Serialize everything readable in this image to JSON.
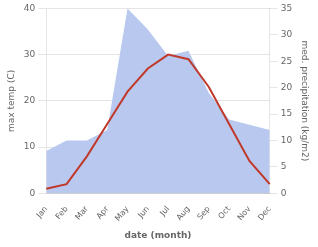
{
  "chart_data": {
    "type": "line",
    "xlabel": "date (month)",
    "ylabel": "max temp (C)",
    "y2label": "med. precipitation (kg/m2)",
    "categories": [
      "Jan",
      "Feb",
      "Mar",
      "Apr",
      "May",
      "Jun",
      "Jul",
      "Aug",
      "Sep",
      "Oct",
      "Nov",
      "Dec"
    ],
    "series": [
      {
        "type": "area",
        "color": "#b8c8ee",
        "axis": "y2",
        "values": [
          8,
          10,
          10,
          12,
          35,
          31,
          26,
          27,
          19,
          14,
          13,
          12
        ]
      },
      {
        "type": "line",
        "color": "#c0392b",
        "values": [
          1,
          2,
          8,
          15,
          22,
          27,
          30,
          29,
          23,
          15,
          7,
          2
        ]
      }
    ],
    "ylim": [
      0,
      40
    ],
    "yticks": [
      0,
      10,
      20,
      30,
      40
    ],
    "y2lim": [
      0,
      35
    ],
    "y2ticks": [
      0,
      5,
      10,
      15,
      20,
      25,
      30,
      35
    ],
    "grid": true
  }
}
